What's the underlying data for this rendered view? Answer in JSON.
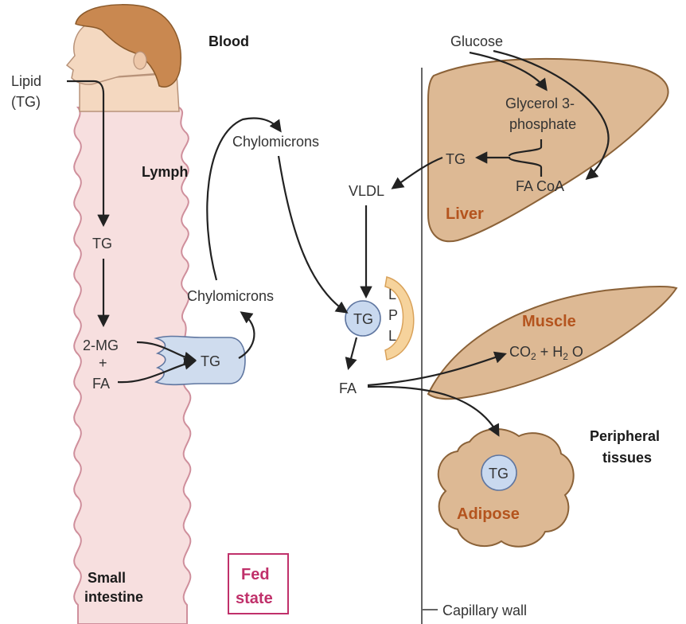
{
  "colors": {
    "tissue_fill": "#ddb994",
    "tissue_stroke": "#8b6238",
    "intestine_fill": "#f7dfdf",
    "intestine_stroke": "#cf8f9c",
    "organ_text": "#b4541e",
    "fed_state": "#c0306a",
    "lpl_fill": "#f6d39c",
    "tg_circle": "#c9d9ef",
    "enterocyte": "#cfdcee",
    "hair": "#c98850",
    "skin": "#f4d8c0"
  },
  "labels": {
    "lipid": "Lipid",
    "lipid_tg": "(TG)",
    "blood": "Blood",
    "lymph": "Lymph",
    "tg_intestine": "TG",
    "two_mg": "2-MG",
    "plus": "+",
    "fa_intestine": "FA",
    "tg_enterocyte": "TG",
    "small": "Small",
    "intestine": "intestine",
    "fed": "Fed",
    "state": "state",
    "chylomicrons_top": "Chylomicrons",
    "chylomicrons_low": "Chylomicrons",
    "vldl": "VLDL",
    "tg_lpl": "TG",
    "lpl_l1": "L",
    "lpl_p": "P",
    "lpl_l2": "L",
    "fa_capillary": "FA",
    "glucose": "Glucose",
    "glycerol_1": "Glycerol 3-",
    "glycerol_2": "phosphate",
    "tg_liver": "TG",
    "fa_coa": "FA CoA",
    "liver": "Liver",
    "muscle": "Muscle",
    "co2_a": "CO",
    "co2_sub": "2",
    "co2_b": " + H",
    "h2o_sub": "2",
    "h2o_b": " O",
    "peripheral": "Peripheral",
    "tissues": "tissues",
    "tg_adipose": "TG",
    "adipose": "Adipose",
    "capillary_wall": "Capillary wall"
  }
}
